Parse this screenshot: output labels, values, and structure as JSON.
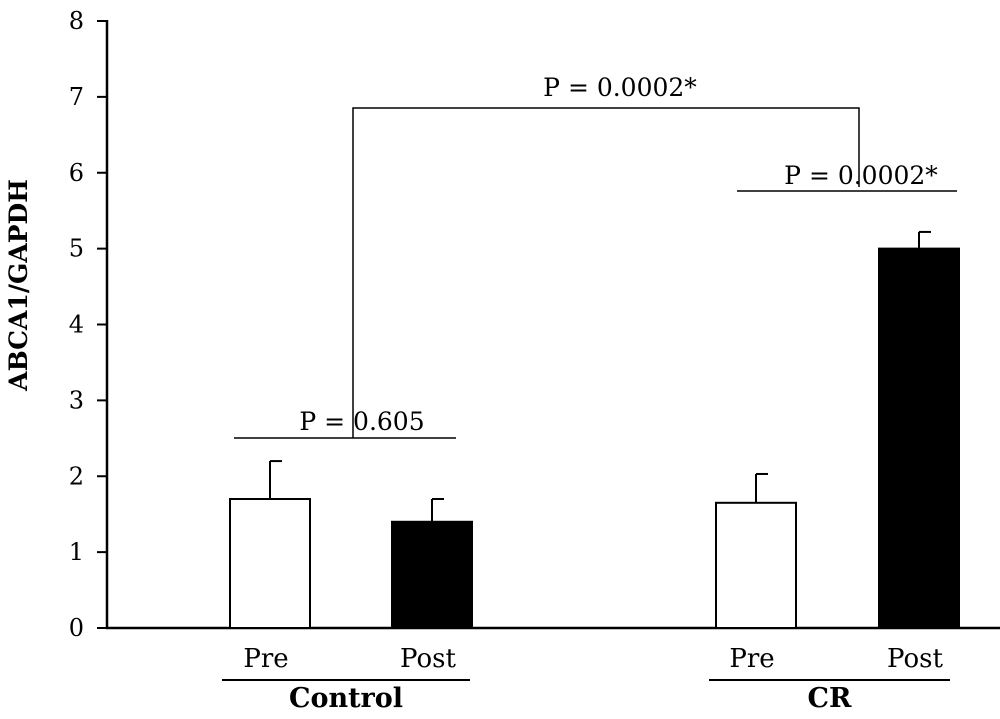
{
  "chart_data": {
    "type": "bar",
    "ylabel": "ABCA1/GAPDH",
    "ylim": [
      0,
      8
    ],
    "yticks": [
      0,
      1,
      2,
      3,
      4,
      5,
      6,
      7,
      8
    ],
    "grid": false,
    "bars": [
      {
        "group": "Control",
        "label": "Pre",
        "value": 1.7,
        "error": 0.5,
        "fill": "#ffffff"
      },
      {
        "group": "Control",
        "label": "Post",
        "value": 1.4,
        "error": 0.3,
        "fill": "#000000"
      },
      {
        "group": "CR",
        "label": "Pre",
        "value": 1.65,
        "error": 0.38,
        "fill": "#ffffff"
      },
      {
        "group": "CR",
        "label": "Post",
        "value": 5.0,
        "error": 0.22,
        "fill": "#000000"
      }
    ],
    "groups": [
      "Control",
      "CR"
    ],
    "annotations": [
      {
        "text": "P = 0.605"
      },
      {
        "text": "P = 0.0002*"
      },
      {
        "text": "P = 0.0002*"
      }
    ]
  }
}
